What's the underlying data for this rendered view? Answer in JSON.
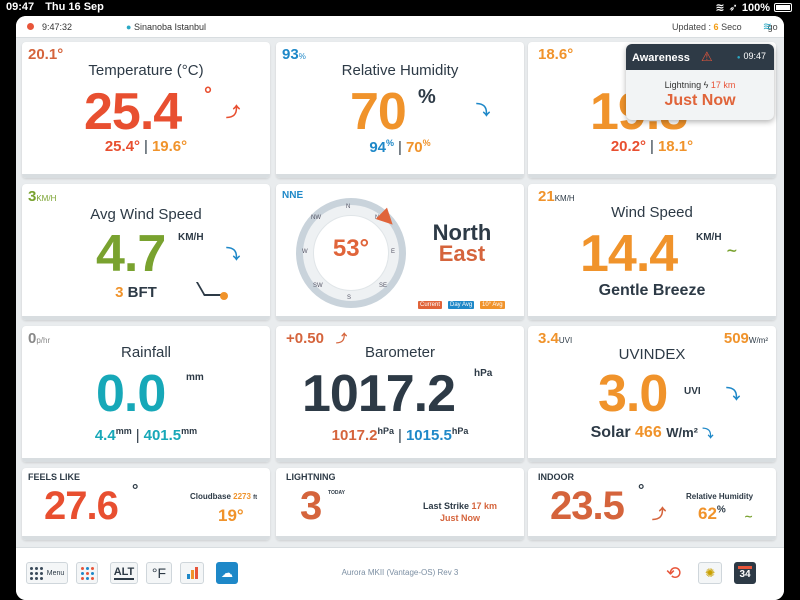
{
  "status_bar": {
    "time": "09:47",
    "date": "Thu 16 Sep",
    "battery": "100%"
  },
  "top_bar": {
    "time": "9:47:32",
    "location": "Sinanoba Istanbul",
    "updated_label": "Updated :",
    "updated_value": "6",
    "updated_suffix": "Seco",
    "tail": "go"
  },
  "popup": {
    "title": "Awareness",
    "time": "09:47",
    "lightning_label": "Lightning",
    "lightning_distance": "17 km",
    "status": "Just Now"
  },
  "temperature": {
    "corner": "20.1°",
    "title": "Temperature (°C)",
    "value": "25.4",
    "deg": "°",
    "high": "25.4°",
    "low": "19.6°"
  },
  "humidity": {
    "corner": "93",
    "corner_unit": "%",
    "title": "Relative Humidity",
    "value": "70",
    "unit": "%",
    "high": "94",
    "low": "70",
    "pct": "%"
  },
  "dewpoint": {
    "corner": "18.6°",
    "title": "D",
    "value": "19.8",
    "high": "20.2°",
    "low": "18.1°"
  },
  "wind_avg": {
    "corner": "3",
    "corner_unit": "KM/H",
    "title": "Avg Wind Speed",
    "value": "4.7",
    "unit": "KM/H",
    "bft_value": "3",
    "bft_label": "BFT"
  },
  "compass": {
    "direction_abbr": "NNE",
    "degrees": "53°",
    "dir_line1": "North",
    "dir_line2": "East",
    "labels": [
      "N",
      "NE",
      "E",
      "SE",
      "S",
      "SW",
      "W",
      "NW"
    ],
    "legend": [
      "Current",
      "Day Avg",
      "10° Avg"
    ]
  },
  "wind_speed": {
    "corner": "21",
    "corner_unit": "KM/H",
    "title": "Wind Speed",
    "value": "14.4",
    "unit": "KM/H",
    "description": "Gentle Breeze"
  },
  "rainfall": {
    "corner": "0",
    "corner_unit": "p/hr",
    "title": "Rainfall",
    "value": "0.0",
    "unit": "mm",
    "sub1": "4.4",
    "sub2": "401.5",
    "sub_unit": "mm"
  },
  "barometer": {
    "corner": "+0.50",
    "title": "Barometer",
    "value": "1017.2",
    "unit": "hPa",
    "sub1": "1017.2",
    "sub2": "1015.5",
    "sub_unit": "hPa"
  },
  "uv": {
    "corner_left": "3.4",
    "corner_left_unit": "UVI",
    "corner_right": "509",
    "corner_right_unit": "W/m²",
    "title": "UVINDEX",
    "value": "3.0",
    "unit": "UVI",
    "solar_label": "Solar",
    "solar_value": "466",
    "solar_unit": "W/m²"
  },
  "feels_like": {
    "label": "FEELS LIKE",
    "value": "27.6",
    "deg": "°",
    "cloudbase_label": "Cloudbase",
    "cloudbase_value": "2273",
    "cloudbase_unit": "ft",
    "cloud_temp": "19°"
  },
  "lightning": {
    "label": "LIGHTNING",
    "value": "3",
    "today": "TODAY",
    "last_strike_label": "Last Strike",
    "last_strike_distance": "17 km",
    "last_strike_time": "Just Now"
  },
  "indoor": {
    "label": "INDOOR",
    "value": "23.5",
    "deg": "°",
    "hum_label": "Relative Humidity",
    "hum_value": "62",
    "hum_unit": "%"
  },
  "bottom_bar": {
    "menu_label": "Menu",
    "alt_label": "ALT",
    "f_label": "°F",
    "footer": "Aurora MKII (Vantage-OS) Rev 3",
    "calendar_day": "34"
  }
}
